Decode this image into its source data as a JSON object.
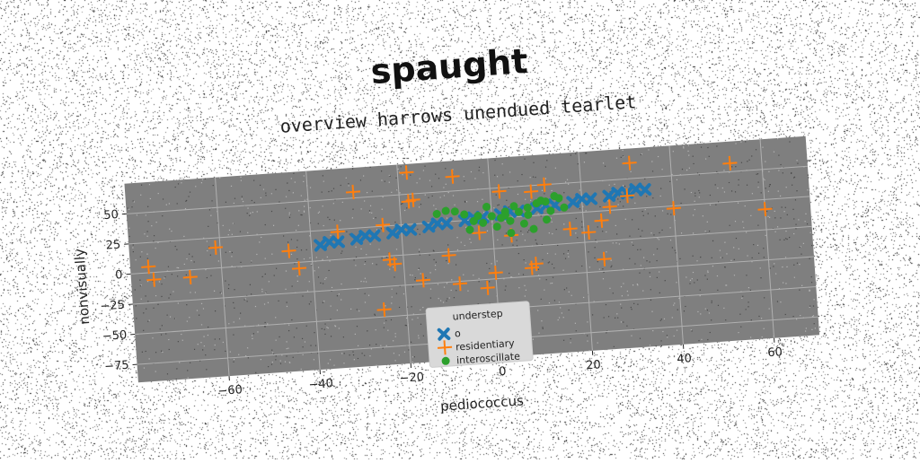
{
  "chart_data": {
    "type": "scatter",
    "title": "spaught",
    "subtitle": "overview harrows unendued tearlet",
    "xlabel": "pediococcus",
    "ylabel": "nonvisually",
    "xlim": [
      -80,
      70
    ],
    "ylim": [
      -90,
      75
    ],
    "xticks": [
      -60,
      -40,
      -20,
      0,
      20,
      40,
      60
    ],
    "xtick_labels": [
      "−60",
      "−40",
      "−20",
      "0",
      "20",
      "40",
      "60"
    ],
    "yticks": [
      -75,
      -50,
      -25,
      0,
      25,
      50
    ],
    "ytick_labels": [
      "−75",
      "−50",
      "−25",
      "0",
      "25",
      "50"
    ],
    "grid": true,
    "legend": {
      "title": "understep",
      "placement": "lower-center"
    },
    "series": [
      {
        "name": "o",
        "marker": "x",
        "color": "#1f77b4",
        "x": [
          -38,
          -34,
          -30,
          -26,
          -22,
          -18,
          -14,
          -10,
          -6,
          -2,
          2,
          6,
          10,
          14,
          18,
          22,
          26,
          30,
          34,
          -36,
          -28,
          -20,
          -12,
          -4,
          4,
          12,
          20,
          28,
          32
        ],
        "y": [
          13,
          14.5,
          16,
          17.5,
          19,
          20.5,
          22,
          23.5,
          25,
          26.5,
          28,
          29.5,
          31,
          32.5,
          34,
          35.5,
          37,
          38.5,
          40,
          15,
          18,
          21,
          24,
          27,
          30,
          33,
          36,
          39,
          41
        ]
      },
      {
        "name": "residentiary",
        "marker": "+",
        "color": "#ff7f0e",
        "x": [
          -76,
          -75,
          -67,
          -61,
          -45,
          -43,
          -34,
          -30,
          -25,
          -24,
          -23,
          -22,
          -18,
          -18,
          -17,
          -16,
          -10,
          -8,
          -8,
          -3,
          -2,
          0,
          2,
          4,
          8,
          9,
          9,
          12,
          17,
          21,
          24,
          24,
          26,
          30,
          31,
          40,
          53,
          60
        ],
        "y": [
          5,
          -6,
          -6,
          17,
          10,
          -5,
          23,
          55,
          -44,
          26,
          -3,
          -7,
          68,
          44,
          45,
          -22,
          -3,
          -27,
          62,
          14,
          -32,
          -20,
          47,
          10,
          -18,
          -15,
          45,
          50,
          12,
          8,
          17,
          -15,
          28,
          36,
          63,
          23,
          57,
          17
        ]
      },
      {
        "name": "interoscillate",
        "marker": "o",
        "color": "#2ca02c",
        "x": [
          -12,
          -10,
          -8,
          -6,
          -5,
          -4,
          -2,
          -1,
          0,
          1,
          2,
          3,
          4,
          4,
          5,
          6,
          7,
          8,
          9,
          10,
          11,
          12,
          13,
          14,
          15,
          16,
          -3,
          3,
          8,
          12
        ],
        "y": [
          32,
          34,
          33,
          30,
          17,
          24,
          22,
          35,
          27,
          18,
          25,
          30,
          22,
          12,
          34,
          29,
          19,
          26,
          14,
          35,
          37,
          21,
          28,
          40,
          38,
          30,
          28,
          27,
          32,
          36
        ]
      }
    ]
  }
}
